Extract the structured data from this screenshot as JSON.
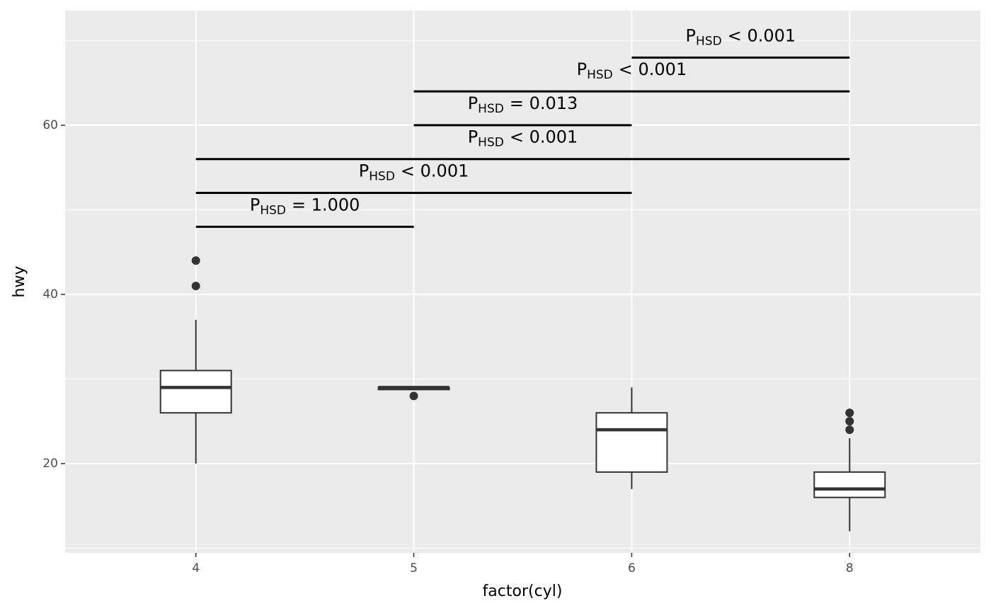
{
  "chart_data": {
    "type": "box",
    "x_label": "factor(cyl)",
    "y_label": "hwy",
    "categories": [
      "4",
      "5",
      "6",
      "8"
    ],
    "boxes": [
      {
        "low": 20,
        "q1": 26,
        "median": 29,
        "q3": 31,
        "high": 37,
        "outliers": [
          44,
          41
        ]
      },
      {
        "low": 28.75,
        "q1": 28.75,
        "median": 29,
        "q3": 29,
        "high": 29,
        "outliers": [
          28
        ]
      },
      {
        "low": 17,
        "q1": 19,
        "median": 24,
        "q3": 26,
        "high": 29,
        "outliers": []
      },
      {
        "low": 12,
        "q1": 16,
        "median": 17,
        "q3": 19,
        "high": 23,
        "outliers": [
          26,
          25,
          24
        ]
      }
    ],
    "comparisons": [
      {
        "from": "4",
        "to": "5",
        "y": 48,
        "label": [
          "P",
          "HSD",
          "= 1.000"
        ]
      },
      {
        "from": "4",
        "to": "6",
        "y": 52,
        "label": [
          "P",
          "HSD",
          "< 0.001"
        ]
      },
      {
        "from": "4",
        "to": "8",
        "y": 56,
        "label": [
          "P",
          "HSD",
          "< 0.001"
        ]
      },
      {
        "from": "5",
        "to": "6",
        "y": 60,
        "label": [
          "P",
          "HSD",
          "= 0.013"
        ]
      },
      {
        "from": "5",
        "to": "8",
        "y": 64,
        "label": [
          "P",
          "HSD",
          "< 0.001"
        ]
      },
      {
        "from": "6",
        "to": "8",
        "y": 68,
        "label": [
          "P",
          "HSD",
          "< 0.001"
        ]
      }
    ],
    "ylim": [
      9.45,
      73.55
    ],
    "yticks": [
      20,
      40,
      60
    ],
    "yticks_minor": [
      10,
      30,
      50,
      70
    ],
    "grid": true,
    "panel_color": "#ebebeb",
    "box_color": "#333333"
  }
}
